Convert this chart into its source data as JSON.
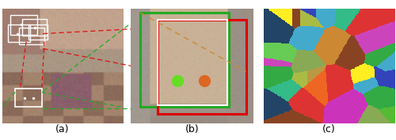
{
  "fig_width": 5.0,
  "fig_height": 1.77,
  "dpi": 100,
  "panel_a_label": "(a)",
  "panel_b_label": "(b)",
  "panel_c_label": "(c)",
  "label_fontsize": 9,
  "colors": {
    "red_rect": "#dd0000",
    "green_rect": "#22aa22",
    "white_rect": "#ffffff",
    "green_dot": "#66dd22",
    "orange_dot": "#dd6622",
    "dashed_red": "#dd0000",
    "dashed_green": "#22aa22",
    "dashed_orange": "#cc8833"
  },
  "axes": {
    "a": [
      0.005,
      0.12,
      0.305,
      0.82
    ],
    "b": [
      0.33,
      0.12,
      0.31,
      0.82
    ],
    "c": [
      0.665,
      0.12,
      0.33,
      0.82
    ]
  }
}
